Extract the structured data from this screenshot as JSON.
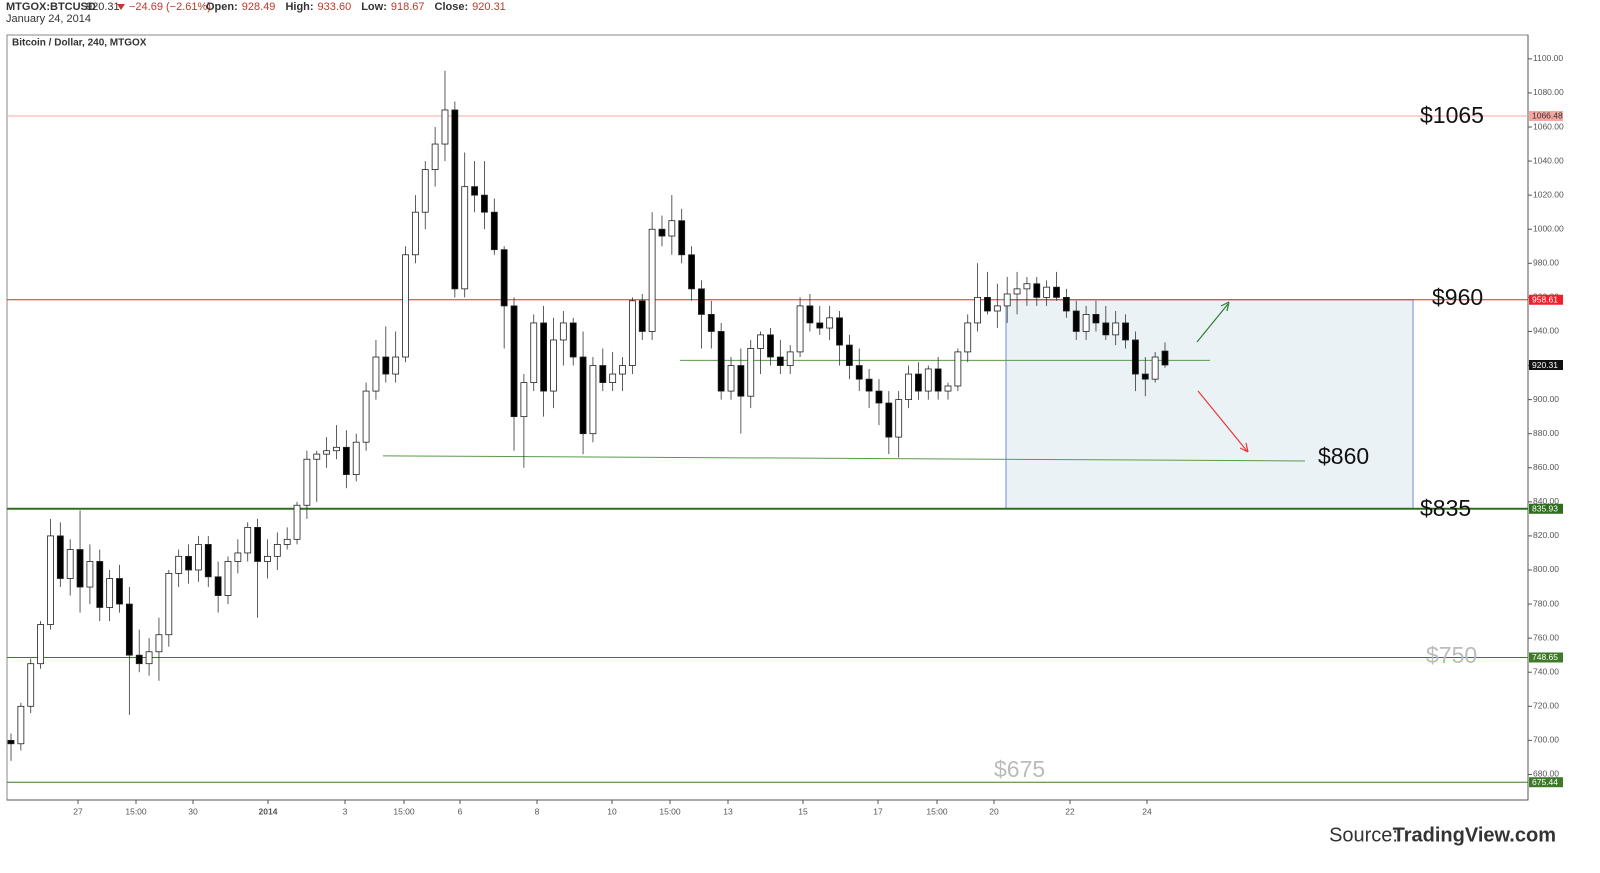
{
  "chart_data": {
    "type": "candlestick",
    "header": {
      "symbol": "MTGOX:BTCUSD",
      "price": "920.31",
      "change": "−24.69 (−2.61%)",
      "items": [
        {
          "label": "Open:",
          "value": "928.49"
        },
        {
          "label": "High:",
          "value": "933.60"
        },
        {
          "label": "Low:",
          "value": "918.67"
        },
        {
          "label": "Close:",
          "value": "920.31"
        }
      ],
      "date": "January 24, 2014"
    },
    "title": "Bitcoin / Dollar, 240, MTGOX",
    "x_labels": [
      "27",
      "15:00",
      "30",
      "2014",
      "3",
      "15:00",
      "6",
      "8",
      "10",
      "15:00",
      "13",
      "15",
      "17",
      "15:00",
      "20",
      "22",
      "24"
    ],
    "ohlc": [
      [
        700,
        704,
        688,
        698
      ],
      [
        698,
        722,
        694,
        720
      ],
      [
        720,
        748,
        716,
        745
      ],
      [
        745,
        770,
        742,
        768
      ],
      [
        768,
        830,
        765,
        820
      ],
      [
        820,
        828,
        790,
        795
      ],
      [
        795,
        818,
        785,
        812
      ],
      [
        812,
        835,
        775,
        790
      ],
      [
        790,
        815,
        780,
        805
      ],
      [
        805,
        812,
        770,
        778
      ],
      [
        778,
        800,
        770,
        795
      ],
      [
        795,
        803,
        775,
        780
      ],
      [
        780,
        790,
        715,
        750
      ],
      [
        750,
        765,
        740,
        745
      ],
      [
        745,
        760,
        738,
        752
      ],
      [
        752,
        772,
        735,
        762
      ],
      [
        762,
        800,
        755,
        798
      ],
      [
        798,
        812,
        790,
        808
      ],
      [
        808,
        815,
        792,
        800
      ],
      [
        800,
        820,
        793,
        815
      ],
      [
        815,
        820,
        790,
        796
      ],
      [
        796,
        805,
        775,
        785
      ],
      [
        785,
        808,
        780,
        805
      ],
      [
        805,
        818,
        798,
        810
      ],
      [
        810,
        828,
        805,
        825
      ],
      [
        825,
        830,
        772,
        805
      ],
      [
        805,
        818,
        795,
        808
      ],
      [
        808,
        822,
        800,
        815
      ],
      [
        815,
        825,
        812,
        818
      ],
      [
        818,
        840,
        815,
        838
      ],
      [
        838,
        870,
        830,
        865
      ],
      [
        865,
        870,
        840,
        868
      ],
      [
        868,
        878,
        860,
        870
      ],
      [
        870,
        885,
        865,
        872
      ],
      [
        872,
        882,
        848,
        856
      ],
      [
        856,
        880,
        852,
        875
      ],
      [
        875,
        910,
        870,
        905
      ],
      [
        905,
        935,
        900,
        925
      ],
      [
        925,
        943,
        910,
        915
      ],
      [
        915,
        940,
        910,
        925
      ],
      [
        925,
        990,
        922,
        985
      ],
      [
        985,
        1020,
        980,
        1010
      ],
      [
        1010,
        1040,
        1000,
        1035
      ],
      [
        1035,
        1060,
        1025,
        1050
      ],
      [
        1050,
        1093,
        1040,
        1070
      ],
      [
        1070,
        1075,
        960,
        965
      ],
      [
        965,
        1045,
        960,
        1025
      ],
      [
        1025,
        1040,
        1010,
        1020
      ],
      [
        1020,
        1040,
        1000,
        1010
      ],
      [
        1010,
        1018,
        985,
        988
      ],
      [
        988,
        990,
        930,
        955
      ],
      [
        955,
        960,
        870,
        890
      ],
      [
        890,
        915,
        860,
        910
      ],
      [
        910,
        950,
        905,
        945
      ],
      [
        945,
        955,
        890,
        905
      ],
      [
        905,
        948,
        895,
        935
      ],
      [
        935,
        952,
        920,
        945
      ],
      [
        945,
        948,
        920,
        925
      ],
      [
        925,
        940,
        868,
        880
      ],
      [
        880,
        925,
        875,
        920
      ],
      [
        920,
        930,
        905,
        910
      ],
      [
        910,
        928,
        905,
        915
      ],
      [
        915,
        925,
        905,
        920
      ],
      [
        920,
        960,
        915,
        958
      ],
      [
        958,
        962,
        935,
        940
      ],
      [
        940,
        1010,
        935,
        1000
      ],
      [
        1000,
        1008,
        990,
        996
      ],
      [
        996,
        1020,
        985,
        1005
      ],
      [
        1005,
        1012,
        980,
        985
      ],
      [
        985,
        990,
        958,
        965
      ],
      [
        965,
        970,
        930,
        950
      ],
      [
        950,
        958,
        930,
        940
      ],
      [
        940,
        945,
        900,
        905
      ],
      [
        905,
        925,
        900,
        920
      ],
      [
        920,
        930,
        880,
        902
      ],
      [
        902,
        935,
        895,
        930
      ],
      [
        930,
        940,
        915,
        938
      ],
      [
        938,
        942,
        920,
        925
      ],
      [
        925,
        935,
        915,
        920
      ],
      [
        920,
        932,
        915,
        928
      ],
      [
        928,
        960,
        925,
        955
      ],
      [
        955,
        962,
        940,
        945
      ],
      [
        945,
        955,
        938,
        942
      ],
      [
        942,
        955,
        935,
        948
      ],
      [
        948,
        952,
        920,
        932
      ],
      [
        932,
        938,
        912,
        920
      ],
      [
        920,
        930,
        905,
        912
      ],
      [
        912,
        918,
        895,
        905
      ],
      [
        905,
        912,
        885,
        898
      ],
      [
        898,
        905,
        868,
        878
      ],
      [
        878,
        905,
        866,
        900
      ],
      [
        900,
        920,
        895,
        915
      ],
      [
        915,
        922,
        900,
        905
      ],
      [
        905,
        920,
        900,
        918
      ],
      [
        918,
        925,
        900,
        905
      ],
      [
        905,
        910,
        900,
        908
      ],
      [
        908,
        930,
        905,
        928
      ],
      [
        928,
        950,
        922,
        945
      ],
      [
        945,
        980,
        940,
        960
      ],
      [
        960,
        975,
        950,
        952
      ],
      [
        952,
        968,
        942,
        955
      ],
      [
        955,
        972,
        945,
        962
      ],
      [
        962,
        975,
        950,
        965
      ],
      [
        965,
        972,
        955,
        968
      ],
      [
        968,
        972,
        955,
        960
      ],
      [
        960,
        970,
        955,
        966
      ],
      [
        966,
        975,
        958,
        960
      ],
      [
        960,
        965,
        948,
        952
      ],
      [
        952,
        958,
        935,
        940
      ],
      [
        940,
        955,
        935,
        950
      ],
      [
        950,
        958,
        940,
        945
      ],
      [
        945,
        955,
        935,
        938
      ],
      [
        938,
        952,
        932,
        945
      ],
      [
        945,
        950,
        930,
        935
      ],
      [
        935,
        940,
        905,
        915
      ],
      [
        915,
        925,
        902,
        912
      ],
      [
        912,
        928,
        910,
        925
      ],
      [
        928.49,
        933.6,
        918.67,
        920.31
      ]
    ],
    "ylim": [
      665,
      1114
    ],
    "yticks": [
      {
        "value": 680,
        "label": "680.00"
      },
      {
        "value": 700,
        "label": "700.00"
      },
      {
        "value": 720,
        "label": "720.00"
      },
      {
        "value": 740,
        "label": "740.00"
      },
      {
        "value": 760,
        "label": "760.00"
      },
      {
        "value": 780,
        "label": "780.00"
      },
      {
        "value": 800,
        "label": "800.00"
      },
      {
        "value": 820,
        "label": "820.00"
      },
      {
        "value": 840,
        "label": "840.00"
      },
      {
        "value": 860,
        "label": "860.00"
      },
      {
        "value": 880,
        "label": "880.00"
      },
      {
        "value": 900,
        "label": "900.00"
      },
      {
        "value": 920,
        "label": "920.00"
      },
      {
        "value": 940,
        "label": "940.00"
      },
      {
        "value": 960,
        "label": "960.00"
      },
      {
        "value": 980,
        "label": "980.00"
      },
      {
        "value": 1000,
        "label": "1000.00"
      },
      {
        "value": 1020,
        "label": "1020.00"
      },
      {
        "value": 1040,
        "label": "1040.00"
      },
      {
        "value": 1060,
        "label": "1060.00"
      },
      {
        "value": 1080,
        "label": "1080.00"
      },
      {
        "value": 1100,
        "label": "1100.00"
      }
    ],
    "levels": [
      {
        "value": 1066.48,
        "color": "#f4a6a0"
      },
      {
        "value": 958.61,
        "color": "#f0202a"
      },
      {
        "value": 835.93,
        "color": "#2e6e1e"
      },
      {
        "value": 748.65,
        "color": "#3e7a2a"
      },
      {
        "value": 675.44,
        "color": "#3e7a2a"
      }
    ],
    "last_price": 920.31,
    "trendlines": [
      {
        "values": [
          923,
          923
        ],
        "color": "#5a9a4a"
      },
      {
        "values": [
          867,
          864
        ],
        "color": "#5a9a4a"
      }
    ],
    "zone": [
      835.93,
      958.61
    ],
    "annotations": [
      "$1065",
      "$960",
      "$860",
      "$835",
      "$750",
      "$675"
    ],
    "source": [
      "Source:",
      "TradingView.com"
    ]
  }
}
